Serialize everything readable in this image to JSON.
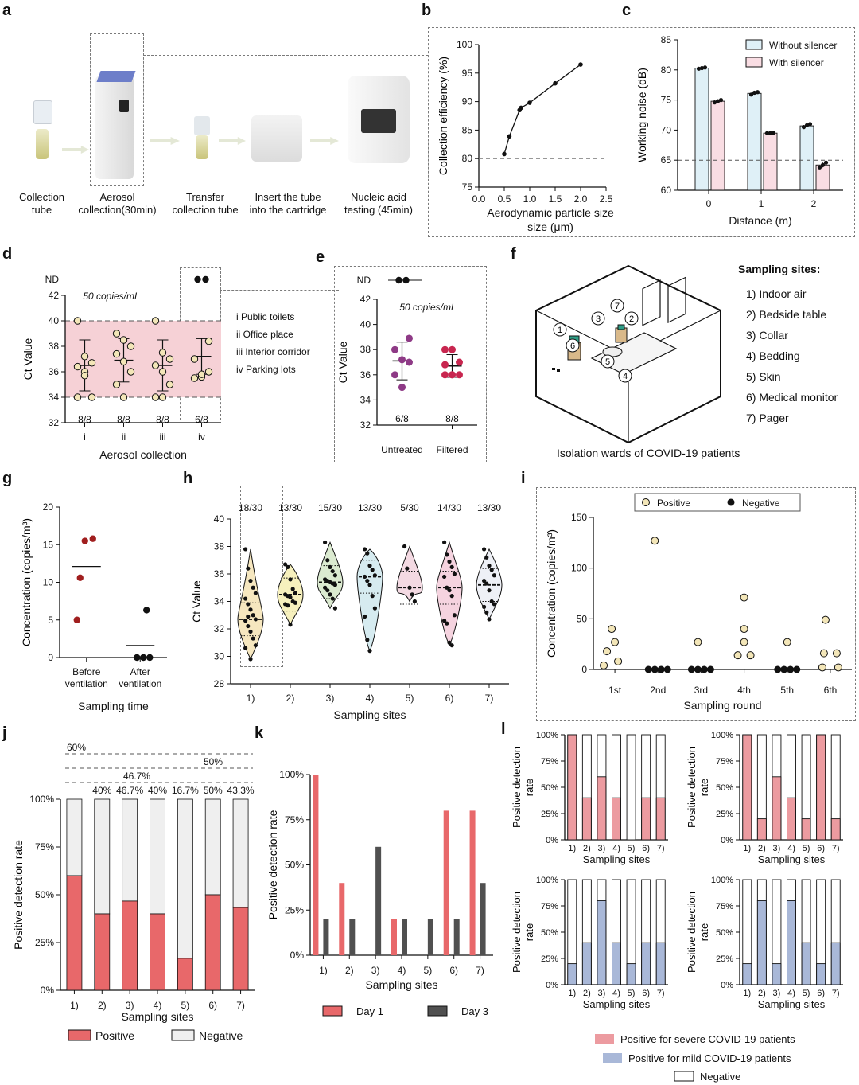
{
  "panel_labels": [
    "a",
    "b",
    "c",
    "d",
    "e",
    "f",
    "g",
    "h",
    "i",
    "j",
    "k",
    "l"
  ],
  "panel_a": {
    "steps": [
      {
        "label": "Collection\ntube"
      },
      {
        "label": "Aerosol\ncollection(30min)"
      },
      {
        "label": "Transfer\ncollection tube"
      },
      {
        "label": "Insert the tube\ninto the cartridge"
      },
      {
        "label": "Nucleic acid\ntesting (45min)"
      }
    ]
  },
  "panel_f": {
    "caption": "Isolation wards of COVID-19 patients",
    "sites_title": "Sampling sites:",
    "sites": [
      "1) Indoor air",
      "2) Bedside table",
      "3) Collar",
      "4) Bedding",
      "5) Skin",
      "6) Medical monitor",
      "7) Pager"
    ]
  },
  "chart_data": [
    {
      "id": "b",
      "type": "line",
      "xlabel": "Aerodynamic particle size (μm)",
      "ylabel": "Collection efficiency (%)",
      "xlim": [
        0.0,
        2.5
      ],
      "ylim": [
        75,
        100
      ],
      "xticks": [
        "0.0",
        "0.5",
        "1.0",
        "1.5",
        "2.0",
        "2.5"
      ],
      "yticks": [
        "75",
        "80",
        "85",
        "90",
        "95",
        "100"
      ],
      "reference_line_y": 80,
      "x": [
        0.5,
        0.6,
        0.8,
        0.83,
        1.0,
        1.5,
        2.0
      ],
      "y": [
        80.8,
        83.9,
        88.5,
        88.9,
        89.8,
        93.2,
        96.5
      ]
    },
    {
      "id": "c",
      "type": "bar",
      "xlabel": "Distance (m)",
      "ylabel": "Working noise (dB)",
      "ylim": [
        60,
        85
      ],
      "yticks": [
        "60",
        "65",
        "70",
        "75",
        "80",
        "85"
      ],
      "categories": [
        "0",
        "1",
        "2"
      ],
      "reference_line_y": 65,
      "series": [
        {
          "name": "Without silencer",
          "color": "#dff0f7",
          "values": [
            80.3,
            76.1,
            70.7
          ],
          "points": [
            [
              80.2,
              80.3,
              80.4
            ],
            [
              75.9,
              76.2,
              76.3
            ],
            [
              70.5,
              70.8,
              71.0
            ]
          ]
        },
        {
          "name": "With silencer",
          "color": "#f9dde3",
          "values": [
            74.8,
            69.5,
            64.2
          ],
          "points": [
            [
              74.6,
              74.8,
              75.0
            ],
            [
              69.5,
              69.5,
              69.5
            ],
            [
              63.8,
              64.2,
              64.6
            ]
          ]
        }
      ]
    },
    {
      "id": "d",
      "type": "scatter",
      "xlabel": "Aerosol collection",
      "ylabel": "Ct Value",
      "ylim": [
        32,
        42
      ],
      "yticks": [
        "32",
        "34",
        "36",
        "38",
        "40",
        "42"
      ],
      "nd_label": "ND",
      "annotation": "50 copies/mL",
      "categories": [
        "i",
        "ii",
        "iii",
        "iv"
      ],
      "legend": [
        "i Public toilets",
        "ii Office place",
        "iii Interior corridor",
        "iv Parking lots"
      ],
      "shaded_range": [
        34,
        40
      ],
      "counts": [
        "8/8",
        "8/8",
        "8/8",
        "6/8"
      ],
      "means": [
        36.5,
        36.9,
        36.5,
        37.2
      ],
      "sd": [
        2.0,
        1.7,
        2.0,
        1.4
      ],
      "points": [
        [
          40.0,
          37.2,
          36.7,
          36.4,
          36.0,
          34.0,
          34.0,
          35.7
        ],
        [
          39.0,
          38.5,
          38.0,
          37.4,
          36.8,
          36.0,
          35.0,
          34.0
        ],
        [
          40.0,
          37.5,
          37.0,
          36.5,
          36.0,
          35.0,
          34.0,
          34.0
        ],
        [
          "ND",
          "ND",
          38.4,
          37.0,
          35.6,
          36.0,
          35.5,
          35.8
        ]
      ],
      "point_color": "#f3e6b8"
    },
    {
      "id": "e",
      "type": "scatter",
      "ylabel": "Ct Value",
      "ylim": [
        32,
        42
      ],
      "yticks": [
        "32",
        "34",
        "36",
        "38",
        "40",
        "42"
      ],
      "nd_label": "ND",
      "annotation": "50 copies/mL",
      "categories": [
        "Untreated",
        "Filtered"
      ],
      "counts": [
        "6/8",
        "8/8"
      ],
      "means": [
        37.1,
        36.7
      ],
      "sd": [
        1.5,
        0.9
      ],
      "points": [
        [
          "ND",
          "ND",
          38.9,
          38.0,
          37.2,
          37.0,
          36.0,
          35.0
        ],
        [
          38.0,
          38.0,
          37.0,
          36.8,
          36.0,
          36.0,
          36.0,
          36.0
        ]
      ],
      "colors": [
        "#8e3a86",
        "#c8264f"
      ]
    },
    {
      "id": "g",
      "type": "scatter",
      "xlabel": "Sampling time",
      "ylabel": "Concentration (copies/m³)",
      "ylim": [
        0,
        20
      ],
      "yticks": [
        "0",
        "5",
        "10",
        "15",
        "20"
      ],
      "categories": [
        "Before\nventilation",
        "After\nventilation"
      ],
      "means": [
        12.1,
        1.6
      ],
      "points": [
        [
          15.8,
          15.5,
          10.6,
          5.0
        ],
        [
          6.3,
          0,
          0,
          0
        ]
      ],
      "colors": [
        "#a01e1e",
        "#111111"
      ]
    },
    {
      "id": "h",
      "type": "violin",
      "xlabel": "Sampling sites",
      "ylabel": "Ct Value",
      "ylim": [
        28,
        40
      ],
      "yticks": [
        "28",
        "30",
        "32",
        "34",
        "36",
        "38",
        "40"
      ],
      "categories": [
        "1)",
        "2)",
        "3)",
        "4)",
        "5)",
        "6)",
        "7)"
      ],
      "counts": [
        "18/30",
        "13/30",
        "15/30",
        "13/30",
        "5/30",
        "14/30",
        "13/30"
      ],
      "medians": [
        32.7,
        34.5,
        35.4,
        35.8,
        35.0,
        35.0,
        35.2
      ],
      "ranges": [
        [
          29.8,
          37.8
        ],
        [
          32.3,
          36.7
        ],
        [
          33.5,
          38.3
        ],
        [
          30.4,
          37.8
        ],
        [
          34.0,
          38.0
        ],
        [
          30.8,
          38.3
        ],
        [
          32.7,
          37.8
        ]
      ],
      "colors": [
        "#f6e7bf",
        "#f6f0bd",
        "#dbead0",
        "#d6ebf0",
        "#f3d9e2",
        "#f5d3df",
        "#eef0f6"
      ],
      "points": [
        [
          37.8,
          36.4,
          35.5,
          35.0,
          34.6,
          34.2,
          33.8,
          33.4,
          33.0,
          32.7,
          32.6,
          32.2,
          31.8,
          31.3,
          30.8,
          30.6,
          32.9,
          29.8
        ],
        [
          36.7,
          36.5,
          35.6,
          34.9,
          34.6,
          34.5,
          34.4,
          34.3,
          34.0,
          33.9,
          33.8,
          33.7,
          32.3
        ],
        [
          38.3,
          37.0,
          36.5,
          36.2,
          35.9,
          35.6,
          35.5,
          35.4,
          35.3,
          35.2,
          35.0,
          34.8,
          34.5,
          34.2,
          33.5
        ],
        [
          37.8,
          37.5,
          36.6,
          36.3,
          35.9,
          35.8,
          35.5,
          35.2,
          34.4,
          33.5,
          32.9,
          31.2,
          30.4
        ],
        [
          38.0,
          36.4,
          35.0,
          34.5,
          34.0
        ],
        [
          38.3,
          37.4,
          36.9,
          36.5,
          36.0,
          35.8,
          35.0,
          34.8,
          34.4,
          33.0,
          32.6,
          32.4,
          31.0,
          30.8
        ],
        [
          37.8,
          37.2,
          36.6,
          36.3,
          35.9,
          35.5,
          35.3,
          34.8,
          34.0,
          33.8,
          33.6,
          33.2,
          32.7
        ]
      ]
    },
    {
      "id": "i",
      "type": "scatter",
      "xlabel": "Sampling round",
      "ylabel": "Concentration (copies/m³)",
      "ylim": [
        0,
        150
      ],
      "yticks": [
        "0",
        "50",
        "100",
        "150"
      ],
      "categories": [
        "1st",
        "2nd",
        "3rd",
        "4th",
        "5th",
        "6th"
      ],
      "legend": [
        "Positive",
        "Negative"
      ],
      "positive_color": "#f3e6b8",
      "points": [
        {
          "positive": [
            40,
            27,
            18,
            8,
            4
          ],
          "negative": []
        },
        {
          "positive": [
            127
          ],
          "negative": [
            0,
            0,
            0,
            0
          ]
        },
        {
          "positive": [
            27
          ],
          "negative": [
            0,
            0,
            0,
            0
          ]
        },
        {
          "positive": [
            71,
            40,
            27,
            14,
            14
          ],
          "negative": []
        },
        {
          "positive": [
            27
          ],
          "negative": [
            0,
            0,
            0,
            0
          ]
        },
        {
          "positive": [
            49,
            16,
            16,
            2,
            2
          ],
          "negative": []
        }
      ]
    },
    {
      "id": "j",
      "type": "bar",
      "stacked": true,
      "xlabel": "Sampling sites",
      "ylabel": "Positive detection rate",
      "ylim": [
        0,
        100
      ],
      "yticks": [
        "0%",
        "25%",
        "50%",
        "75%",
        "100%"
      ],
      "categories": [
        "1)",
        "2)",
        "3)",
        "4)",
        "5)",
        "6)",
        "7)"
      ],
      "value_labels": [
        "60%",
        "40%",
        "46.7%",
        "40%",
        "16.7%",
        "50%",
        "43.3%"
      ],
      "series": [
        {
          "name": "Positive",
          "color": "#e8686a",
          "values": [
            60,
            40,
            46.7,
            40,
            16.7,
            50,
            43.3
          ]
        },
        {
          "name": "Negative",
          "color": "#efefef",
          "values": [
            40,
            60,
            53.3,
            60,
            83.3,
            50,
            56.7
          ]
        }
      ]
    },
    {
      "id": "k",
      "type": "bar",
      "xlabel": "Sampling sites",
      "ylabel": "Positive detection rate",
      "ylim": [
        0,
        100
      ],
      "yticks": [
        "0%",
        "25%",
        "50%",
        "75%",
        "100%"
      ],
      "categories": [
        "1)",
        "2)",
        "3)",
        "4)",
        "5)",
        "6)",
        "7)"
      ],
      "series": [
        {
          "name": "Day 1",
          "color": "#e8686a",
          "values": [
            100,
            40,
            0,
            20,
            0,
            80,
            80
          ]
        },
        {
          "name": "Day 3",
          "color": "#505050",
          "values": [
            20,
            20,
            60,
            20,
            20,
            20,
            40
          ]
        }
      ]
    },
    {
      "id": "l",
      "type": "bar",
      "stacked": true,
      "xlabel": "Sampling sites",
      "ylabel": "Positive detection rate",
      "ylim": [
        0,
        100
      ],
      "yticks": [
        "0%",
        "25%",
        "50%",
        "75%",
        "100%"
      ],
      "categories": [
        "1)",
        "2)",
        "3)",
        "4)",
        "5)",
        "6)",
        "7)"
      ],
      "legend": [
        "Positive for severe COVID-19 patients",
        "Positive for mild COVID-19 patients",
        "Negative"
      ],
      "severe_color": "#ec9ba0",
      "mild_color": "#a9b8d8",
      "subplots": [
        {
          "group": "severe",
          "values": [
            100,
            40,
            60,
            40,
            0,
            40,
            40
          ]
        },
        {
          "group": "severe",
          "values": [
            100,
            20,
            60,
            40,
            20,
            100,
            20
          ]
        },
        {
          "group": "mild",
          "values": [
            20,
            40,
            80,
            40,
            20,
            40,
            40
          ]
        },
        {
          "group": "mild",
          "values": [
            20,
            80,
            20,
            80,
            40,
            20,
            40
          ]
        }
      ]
    }
  ]
}
